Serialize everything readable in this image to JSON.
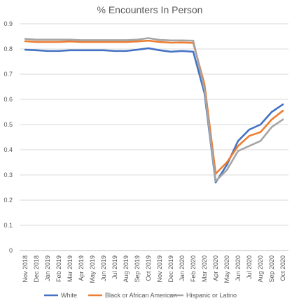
{
  "chart_data": {
    "type": "line",
    "title": "% Encounters In Person",
    "xlabel": "",
    "ylabel": "",
    "ylim": [
      0,
      0.9
    ],
    "yticks": [
      "0",
      "0.1",
      "0.2",
      "0.3",
      "0.4",
      "0.5",
      "0.6",
      "0.7",
      "0.8",
      "0.9"
    ],
    "grid": true,
    "legend_position": "bottom",
    "categories": [
      "Nov 2018",
      "Dec 2018",
      "Jan 2019",
      "Feb 2019",
      "Mar 2019",
      "Apr 2019",
      "May 2019",
      "Jun 2019",
      "Jul 2019",
      "Aug 2019",
      "Sep 2019",
      "Oct 2019",
      "Nov 2019",
      "Dec 2019",
      "Jan 2020",
      "Feb 2020",
      "Mar 2020",
      "Apr 2020",
      "May 2020",
      "Jun 2020",
      "Jul 2020",
      "Aug 2020",
      "Sep 2020",
      "Oct 2020"
    ],
    "series": [
      {
        "name": "White",
        "color": "#4472C4",
        "values": [
          0.797,
          0.795,
          0.792,
          0.792,
          0.795,
          0.795,
          0.795,
          0.795,
          0.792,
          0.792,
          0.797,
          0.803,
          0.795,
          0.789,
          0.792,
          0.789,
          0.625,
          0.27,
          0.34,
          0.435,
          0.48,
          0.5,
          0.55,
          0.58
        ]
      },
      {
        "name": "Black or African American",
        "color": "#ED7D31",
        "values": [
          0.831,
          0.828,
          0.828,
          0.828,
          0.83,
          0.828,
          0.828,
          0.828,
          0.828,
          0.828,
          0.83,
          0.833,
          0.828,
          0.825,
          0.826,
          0.824,
          0.66,
          0.305,
          0.35,
          0.415,
          0.455,
          0.47,
          0.52,
          0.555
        ]
      },
      {
        "name": "Hispanic or Latino",
        "color": "#A5A5A5",
        "values": [
          0.84,
          0.837,
          0.837,
          0.837,
          0.837,
          0.835,
          0.835,
          0.835,
          0.835,
          0.835,
          0.837,
          0.843,
          0.836,
          0.834,
          0.834,
          0.833,
          0.64,
          0.275,
          0.32,
          0.395,
          0.415,
          0.435,
          0.49,
          0.52
        ]
      }
    ]
  }
}
